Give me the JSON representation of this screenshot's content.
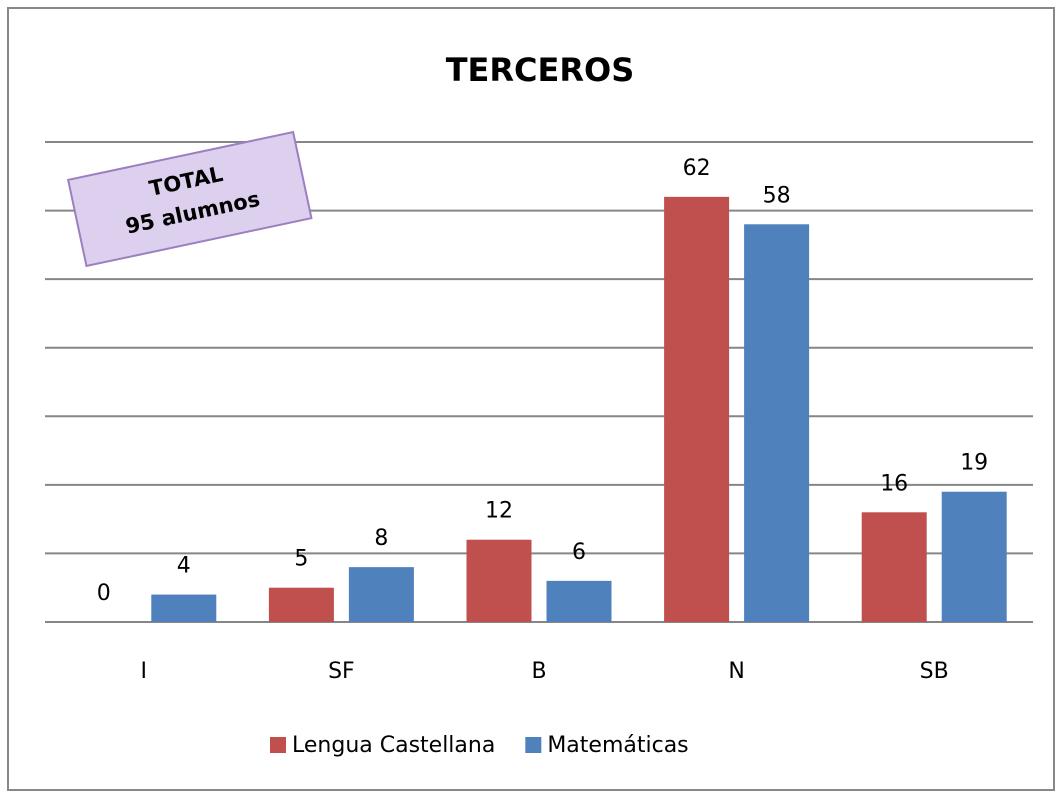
{
  "chart_data": {
    "type": "bar",
    "title": "TERCEROS",
    "annotation": [
      "TOTAL",
      "95 alumnos"
    ],
    "categories": [
      "I",
      "SF",
      "B",
      "N",
      "SB"
    ],
    "series": [
      {
        "name": "Lengua Castellana",
        "color": "#c0504d",
        "values": [
          0,
          5,
          12,
          62,
          16
        ]
      },
      {
        "name": "Matemáticas",
        "color": "#4f81bd",
        "values": [
          4,
          8,
          6,
          58,
          19
        ]
      }
    ],
    "ylim": [
      0,
      70
    ],
    "yticks": [
      0,
      10,
      20,
      30,
      40,
      50,
      60,
      70
    ],
    "grid": true
  }
}
